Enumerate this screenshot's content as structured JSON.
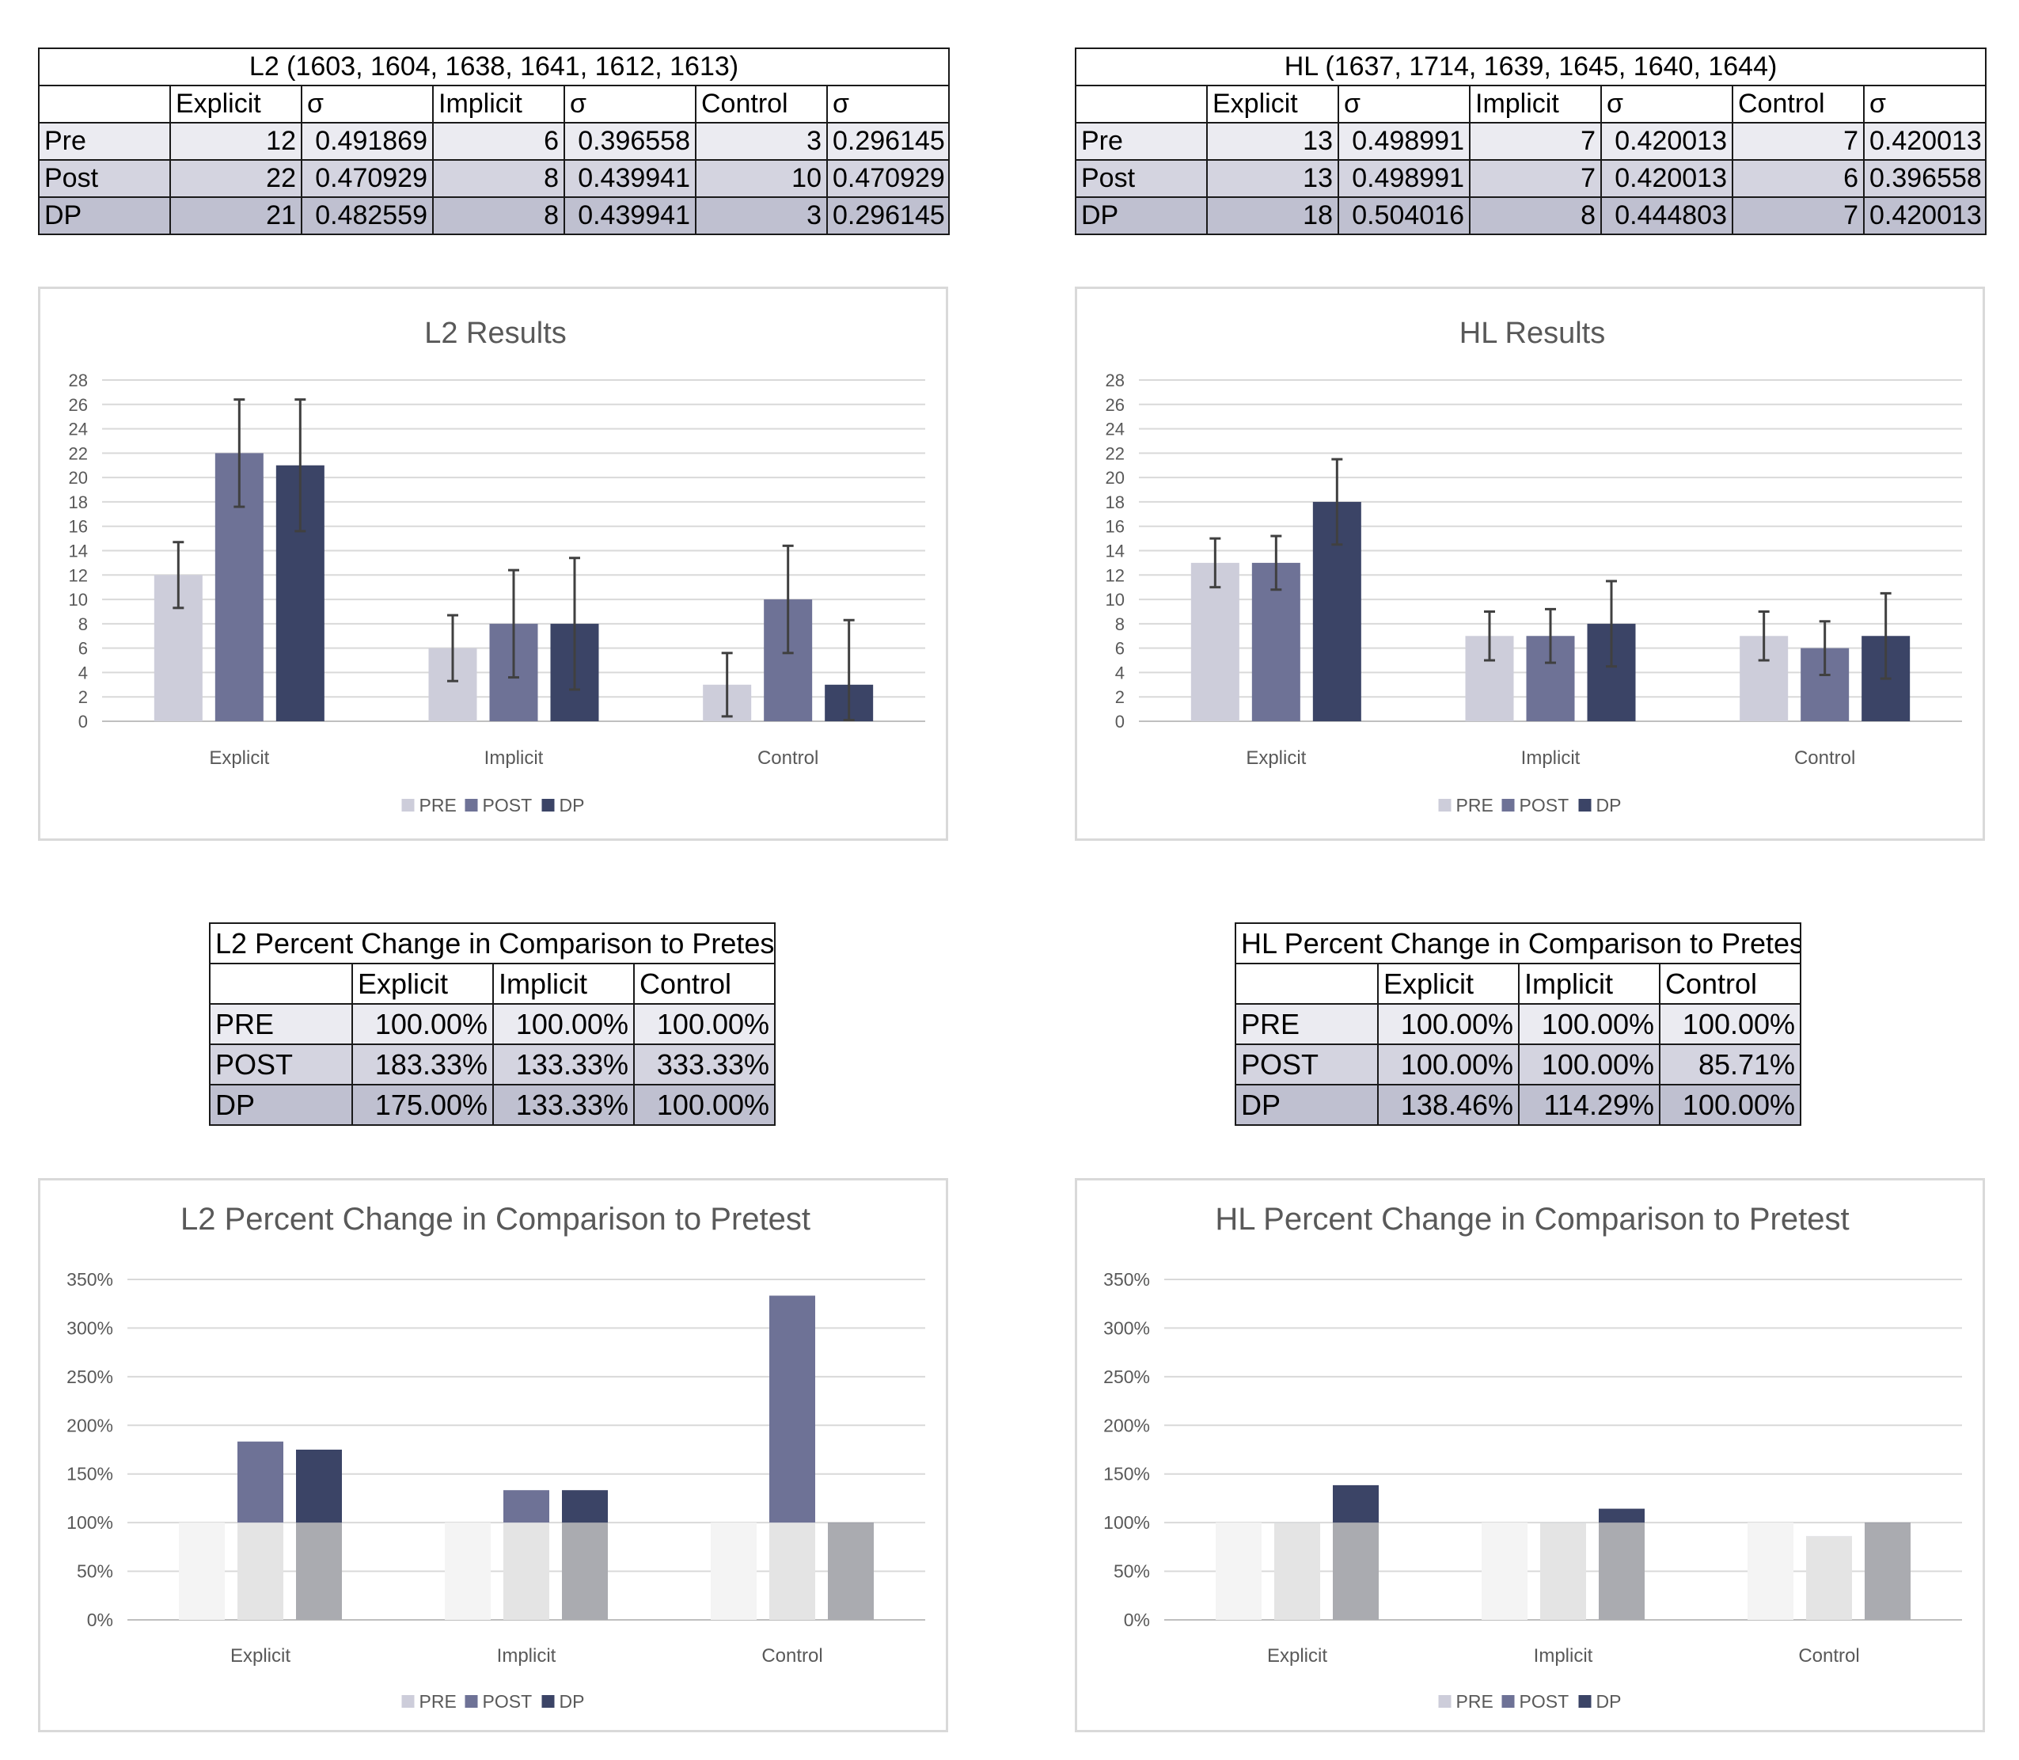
{
  "tables": [
    {
      "id": "l2",
      "title": "L2 (1603, 1604, 1638, 1641, 1612, 1613)",
      "headers": [
        "",
        "Explicit",
        "σ",
        "Implicit",
        "σ",
        "Control",
        "σ"
      ],
      "rows": [
        [
          "Pre",
          "12",
          "0.491869",
          "6",
          "0.396558",
          "3",
          "0.296145"
        ],
        [
          "Post",
          "22",
          "0.470929",
          "8",
          "0.439941",
          "10",
          "0.470929"
        ],
        [
          "DP",
          "21",
          "0.482559",
          "8",
          "0.439941",
          "3",
          "0.296145"
        ]
      ]
    },
    {
      "id": "hl",
      "title": "HL (1637, 1714, 1639, 1645, 1640, 1644)",
      "headers": [
        "",
        "Explicit",
        "σ",
        "Implicit",
        "σ",
        "Control",
        "σ"
      ],
      "rows": [
        [
          "Pre",
          "13",
          "0.498991",
          "7",
          "0.420013",
          "7",
          "0.420013"
        ],
        [
          "Post",
          "13",
          "0.498991",
          "7",
          "0.420013",
          "6",
          "0.396558"
        ],
        [
          "DP",
          "18",
          "0.504016",
          "8",
          "0.444803",
          "7",
          "0.420013"
        ]
      ]
    }
  ],
  "pct_tables": [
    {
      "id": "l2pct",
      "title": "L2 Percent Change in Comparison to Pretest",
      "headers": [
        "",
        "Explicit",
        "Implicit",
        "Control"
      ],
      "rows": [
        [
          "PRE",
          "100.00%",
          "100.00%",
          "100.00%"
        ],
        [
          "POST",
          "183.33%",
          "133.33%",
          "333.33%"
        ],
        [
          "DP",
          "175.00%",
          "133.33%",
          "100.00%"
        ]
      ]
    },
    {
      "id": "hlpct",
      "title": "HL Percent Change in Comparison to Pretest",
      "headers": [
        "",
        "Explicit",
        "Implicit",
        "Control"
      ],
      "rows": [
        [
          "PRE",
          "100.00%",
          "100.00%",
          "100.00%"
        ],
        [
          "POST",
          "100.00%",
          "100.00%",
          "85.71%"
        ],
        [
          "DP",
          "138.46%",
          "114.29%",
          "100.00%"
        ]
      ]
    }
  ],
  "chart_data": [
    {
      "id": "l2-results",
      "type": "bar",
      "title": "L2 Results",
      "categories": [
        "Explicit",
        "Implicit",
        "Control"
      ],
      "series": [
        {
          "name": "PRE",
          "values": [
            12,
            6,
            3
          ],
          "err_low": [
            2.7,
            2.7,
            2.6
          ],
          "err_high": [
            2.7,
            2.7,
            2.6
          ],
          "color": "#cdcdda"
        },
        {
          "name": "POST",
          "values": [
            22,
            8,
            10
          ],
          "err_low": [
            4.4,
            4.4,
            4.4
          ],
          "err_high": [
            4.4,
            4.4,
            4.4
          ],
          "color": "#6e7296"
        },
        {
          "name": "DP",
          "values": [
            21,
            8,
            3
          ],
          "err_low": [
            5.4,
            5.4,
            2.9
          ],
          "err_high": [
            5.4,
            5.4,
            5.3
          ],
          "color": "#3b4466"
        }
      ],
      "yticks": [
        "0",
        "2",
        "4",
        "6",
        "8",
        "10",
        "12",
        "14",
        "16",
        "18",
        "20",
        "22",
        "24",
        "26",
        "28"
      ],
      "ylim": [
        0,
        28
      ],
      "grid": true,
      "legend": "bottom"
    },
    {
      "id": "hl-results",
      "type": "bar",
      "title": "HL Results",
      "categories": [
        "Explicit",
        "Implicit",
        "Control"
      ],
      "series": [
        {
          "name": "PRE",
          "values": [
            13,
            7,
            7
          ],
          "err_low": [
            2.0,
            2.0,
            2.0
          ],
          "err_high": [
            2.0,
            2.0,
            2.0
          ],
          "color": "#cdcdda"
        },
        {
          "name": "POST",
          "values": [
            13,
            7,
            6
          ],
          "err_low": [
            2.2,
            2.2,
            2.2
          ],
          "err_high": [
            2.2,
            2.2,
            2.2
          ],
          "color": "#6e7296"
        },
        {
          "name": "DP",
          "values": [
            18,
            8,
            7
          ],
          "err_low": [
            3.5,
            3.5,
            3.5
          ],
          "err_high": [
            3.5,
            3.5,
            3.5
          ],
          "color": "#3b4466"
        }
      ],
      "yticks": [
        "0",
        "2",
        "4",
        "6",
        "8",
        "10",
        "12",
        "14",
        "16",
        "18",
        "20",
        "22",
        "24",
        "26",
        "28"
      ],
      "ylim": [
        0,
        28
      ],
      "grid": true,
      "legend": "bottom"
    },
    {
      "id": "l2-pct",
      "type": "bar",
      "title": "L2 Percent Change in Comparison to Pretest",
      "categories": [
        "Explicit",
        "Implicit",
        "Control"
      ],
      "series": [
        {
          "name": "PRE",
          "values": [
            1.0,
            1.0,
            1.0
          ],
          "color": "#cdcdda"
        },
        {
          "name": "POST",
          "values": [
            1.8333,
            1.3333,
            3.3333
          ],
          "color": "#6e7296"
        },
        {
          "name": "DP",
          "values": [
            1.75,
            1.3333,
            1.0
          ],
          "color": "#3b4466"
        }
      ],
      "base_overlay": {
        "value": 1.0,
        "colors": [
          "#f4f4f4",
          "#e4e4e4",
          "#aaabb0"
        ]
      },
      "yticks": [
        "0%",
        "50%",
        "100%",
        "150%",
        "200%",
        "250%",
        "300%",
        "350%"
      ],
      "ylim": [
        0,
        3.5
      ],
      "grid": true,
      "legend": "bottom"
    },
    {
      "id": "hl-pct",
      "type": "bar",
      "title": "HL Percent Change in Comparison to Pretest",
      "categories": [
        "Explicit",
        "Implicit",
        "Control"
      ],
      "series": [
        {
          "name": "PRE",
          "values": [
            1.0,
            1.0,
            1.0
          ],
          "color": "#cdcdda"
        },
        {
          "name": "POST",
          "values": [
            1.0,
            1.0,
            0.8571
          ],
          "color": "#6e7296"
        },
        {
          "name": "DP",
          "values": [
            1.3846,
            1.1429,
            1.0
          ],
          "color": "#3b4466"
        }
      ],
      "base_overlay": {
        "value": 1.0,
        "colors": [
          "#f4f4f4",
          "#e4e4e4",
          "#aaabb0"
        ]
      },
      "yticks": [
        "0%",
        "50%",
        "100%",
        "150%",
        "200%",
        "250%",
        "300%",
        "350%"
      ],
      "ylim": [
        0,
        3.5
      ],
      "grid": true,
      "legend": "bottom"
    }
  ]
}
